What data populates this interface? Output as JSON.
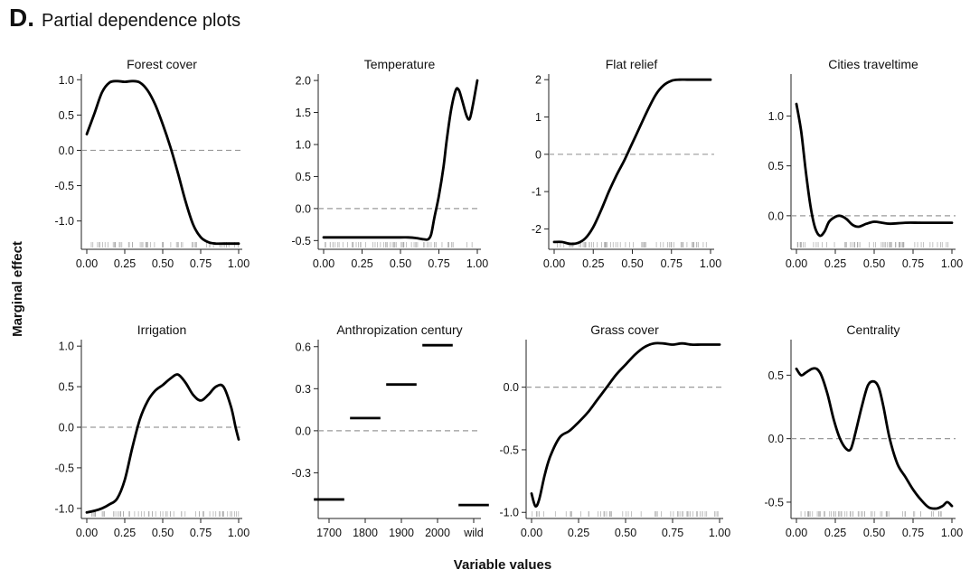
{
  "figure": {
    "panel_letter": "D.",
    "title": "Partial dependence plots",
    "ylabel": "Marginal effect",
    "xlabel": "Variable values"
  },
  "chart_data": [
    {
      "type": "line",
      "title": "Forest cover",
      "xlim": [
        0,
        1
      ],
      "ylim": [
        -1.35,
        1.08
      ],
      "xticks": [
        0,
        0.25,
        0.5,
        0.75,
        1
      ],
      "xtick_labels": [
        "0.00",
        "0.25",
        "0.50",
        "0.75",
        "1.00"
      ],
      "yticks": [
        1,
        0.5,
        0,
        -0.5,
        -1
      ],
      "ytick_labels": [
        "1.0",
        "0.5",
        "0.0",
        "-0.5",
        "-1.0"
      ],
      "reference_line": 0,
      "x": [
        0.0,
        0.05,
        0.1,
        0.15,
        0.2,
        0.25,
        0.3,
        0.35,
        0.4,
        0.45,
        0.5,
        0.55,
        0.6,
        0.65,
        0.7,
        0.75,
        0.8,
        0.85,
        0.9,
        0.95,
        1.0
      ],
      "y": [
        0.23,
        0.52,
        0.82,
        0.96,
        0.98,
        0.97,
        0.98,
        0.96,
        0.85,
        0.65,
        0.37,
        0.05,
        -0.32,
        -0.72,
        -1.05,
        -1.23,
        -1.3,
        -1.32,
        -1.32,
        -1.32,
        -1.32
      ]
    },
    {
      "type": "line",
      "title": "Temperature",
      "xlim": [
        0,
        1
      ],
      "ylim": [
        -0.58,
        2.1
      ],
      "xticks": [
        0,
        0.25,
        0.5,
        0.75,
        1
      ],
      "xtick_labels": [
        "0.00",
        "0.25",
        "0.50",
        "0.75",
        "1.00"
      ],
      "yticks": [
        2,
        1.5,
        1,
        0.5,
        0,
        -0.5
      ],
      "ytick_labels": [
        "2.0",
        "1.5",
        "1.0",
        "0.5",
        "0.0",
        "-0.5"
      ],
      "reference_line": 0,
      "x": [
        0.0,
        0.1,
        0.2,
        0.3,
        0.4,
        0.5,
        0.55,
        0.6,
        0.65,
        0.68,
        0.7,
        0.72,
        0.75,
        0.78,
        0.8,
        0.83,
        0.86,
        0.88,
        0.9,
        0.93,
        0.95,
        0.97,
        1.0
      ],
      "y": [
        -0.45,
        -0.45,
        -0.45,
        -0.45,
        -0.45,
        -0.45,
        -0.45,
        -0.46,
        -0.48,
        -0.48,
        -0.4,
        -0.15,
        0.2,
        0.65,
        1.05,
        1.55,
        1.85,
        1.85,
        1.7,
        1.45,
        1.4,
        1.6,
        2.0
      ]
    },
    {
      "type": "line",
      "title": "Flat relief",
      "xlim": [
        0,
        1
      ],
      "ylim": [
        -2.45,
        2.15
      ],
      "xticks": [
        0,
        0.25,
        0.5,
        0.75,
        1
      ],
      "xtick_labels": [
        "0.00",
        "0.25",
        "0.50",
        "0.75",
        "1.00"
      ],
      "yticks": [
        2,
        1,
        0,
        -1,
        -2
      ],
      "ytick_labels": [
        "2",
        "1",
        "0",
        "-1",
        "-2"
      ],
      "reference_line": 0,
      "x": [
        0.0,
        0.05,
        0.1,
        0.15,
        0.2,
        0.25,
        0.3,
        0.35,
        0.4,
        0.45,
        0.5,
        0.55,
        0.6,
        0.65,
        0.7,
        0.75,
        0.8,
        0.85,
        0.9,
        0.95,
        1.0
      ],
      "y": [
        -2.35,
        -2.35,
        -2.4,
        -2.38,
        -2.25,
        -1.95,
        -1.5,
        -1.0,
        -0.55,
        -0.15,
        0.3,
        0.75,
        1.2,
        1.6,
        1.85,
        1.97,
        2.0,
        2.0,
        2.0,
        2.0,
        2.0
      ]
    },
    {
      "type": "line",
      "title": "Cities traveltime",
      "xlim": [
        0,
        1
      ],
      "ylim": [
        -0.3,
        1.42
      ],
      "xticks": [
        0,
        0.25,
        0.5,
        0.75,
        1
      ],
      "xtick_labels": [
        "0.00",
        "0.25",
        "0.50",
        "0.75",
        "1.00"
      ],
      "yticks": [
        1,
        0.5,
        0
      ],
      "ytick_labels": [
        "1.0",
        "0.5",
        "0.0"
      ],
      "reference_line": 0,
      "x": [
        0.0,
        0.03,
        0.06,
        0.09,
        0.12,
        0.15,
        0.18,
        0.21,
        0.25,
        0.28,
        0.32,
        0.36,
        0.4,
        0.45,
        0.5,
        0.55,
        0.6,
        0.7,
        0.8,
        0.9,
        1.0
      ],
      "y": [
        1.12,
        0.85,
        0.45,
        0.1,
        -0.12,
        -0.2,
        -0.16,
        -0.06,
        -0.01,
        0.0,
        -0.03,
        -0.09,
        -0.11,
        -0.08,
        -0.06,
        -0.07,
        -0.08,
        -0.07,
        -0.07,
        -0.07,
        -0.07
      ]
    },
    {
      "type": "line",
      "title": "Irrigation",
      "xlim": [
        0,
        1
      ],
      "ylim": [
        -1.08,
        1.08
      ],
      "xticks": [
        0,
        0.25,
        0.5,
        0.75,
        1
      ],
      "xtick_labels": [
        "0.00",
        "0.25",
        "0.50",
        "0.75",
        "1.00"
      ],
      "yticks": [
        1,
        0.5,
        0,
        -0.5,
        -1
      ],
      "ytick_labels": [
        "1.0",
        "0.5",
        "0.0",
        "-0.5",
        "-1.0"
      ],
      "reference_line": 0,
      "x": [
        0.0,
        0.05,
        0.1,
        0.15,
        0.2,
        0.25,
        0.3,
        0.35,
        0.4,
        0.45,
        0.5,
        0.55,
        0.6,
        0.65,
        0.7,
        0.75,
        0.8,
        0.85,
        0.9,
        0.95,
        0.98,
        1.0
      ],
      "y": [
        -1.05,
        -1.03,
        -1.0,
        -0.95,
        -0.88,
        -0.65,
        -0.25,
        0.1,
        0.32,
        0.45,
        0.52,
        0.6,
        0.65,
        0.55,
        0.4,
        0.33,
        0.4,
        0.5,
        0.5,
        0.25,
        0.0,
        -0.15
      ]
    },
    {
      "type": "bar",
      "title": "Anthropization century",
      "categories": [
        "1700",
        "1800",
        "1900",
        "2000",
        "wild"
      ],
      "values": [
        -0.49,
        0.09,
        0.33,
        0.61,
        -0.53
      ],
      "ylim": [
        -0.6,
        0.65
      ],
      "yticks": [
        0.6,
        0.3,
        0,
        -0.3
      ],
      "ytick_labels": [
        "0.6",
        "0.3",
        "0.0",
        "-0.3"
      ],
      "reference_line": 0
    },
    {
      "type": "line",
      "title": "Grass cover",
      "xlim": [
        0,
        1
      ],
      "ylim": [
        -1.02,
        0.38
      ],
      "xticks": [
        0,
        0.25,
        0.5,
        0.75,
        1
      ],
      "xtick_labels": [
        "0.00",
        "0.25",
        "0.50",
        "0.75",
        "1.00"
      ],
      "yticks": [
        0,
        -0.5,
        -1
      ],
      "ytick_labels": [
        "0.0",
        "-0.5",
        "-1.0"
      ],
      "reference_line": 0,
      "x": [
        0.0,
        0.02,
        0.04,
        0.07,
        0.1,
        0.15,
        0.2,
        0.25,
        0.3,
        0.35,
        0.4,
        0.45,
        0.5,
        0.55,
        0.6,
        0.65,
        0.7,
        0.75,
        0.8,
        0.85,
        0.9,
        0.95,
        1.0
      ],
      "y": [
        -0.85,
        -0.95,
        -0.9,
        -0.7,
        -0.55,
        -0.4,
        -0.35,
        -0.28,
        -0.2,
        -0.1,
        0.0,
        0.1,
        0.18,
        0.26,
        0.32,
        0.35,
        0.35,
        0.34,
        0.35,
        0.34,
        0.34,
        0.34,
        0.34
      ]
    },
    {
      "type": "line",
      "title": "Centrality",
      "xlim": [
        0,
        1
      ],
      "ylim": [
        -0.6,
        0.78
      ],
      "xticks": [
        0,
        0.25,
        0.5,
        0.75,
        1
      ],
      "xtick_labels": [
        "0.00",
        "0.25",
        "0.50",
        "0.75",
        "1.00"
      ],
      "yticks": [
        0.5,
        0,
        -0.5
      ],
      "ytick_labels": [
        "0.5",
        "0.0",
        "-0.5"
      ],
      "reference_line": 0,
      "x": [
        0.0,
        0.03,
        0.06,
        0.1,
        0.13,
        0.16,
        0.2,
        0.24,
        0.28,
        0.32,
        0.35,
        0.38,
        0.42,
        0.46,
        0.5,
        0.53,
        0.56,
        0.6,
        0.65,
        0.7,
        0.75,
        0.8,
        0.85,
        0.9,
        0.94,
        0.97,
        1.0
      ],
      "y": [
        0.55,
        0.5,
        0.52,
        0.55,
        0.55,
        0.5,
        0.35,
        0.15,
        0.0,
        -0.08,
        -0.08,
        0.05,
        0.25,
        0.42,
        0.45,
        0.4,
        0.25,
        0.0,
        -0.2,
        -0.3,
        -0.4,
        -0.48,
        -0.54,
        -0.55,
        -0.53,
        -0.5,
        -0.53
      ]
    }
  ]
}
